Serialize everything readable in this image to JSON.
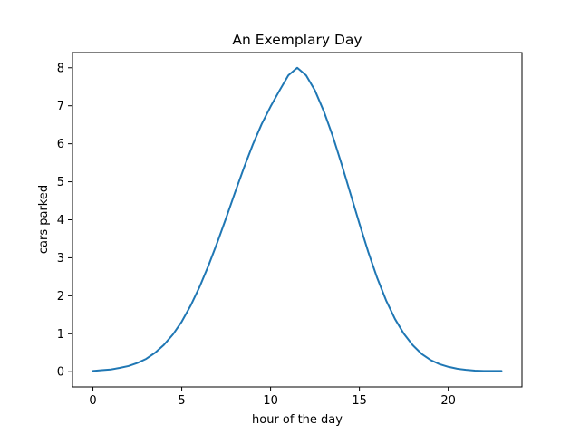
{
  "chart_data": {
    "type": "line",
    "title": "An Exemplary Day",
    "xlabel": "hour of the day",
    "ylabel": "cars parked",
    "xlim": [
      -1.15,
      24.15
    ],
    "ylim": [
      -0.4,
      8.4
    ],
    "xticks": [
      0,
      5,
      10,
      15,
      20
    ],
    "yticks": [
      0,
      1,
      2,
      3,
      4,
      5,
      6,
      7,
      8
    ],
    "grid": false,
    "color": "#1f77b4",
    "series": [
      {
        "x": [
          0,
          0.5,
          1,
          1.5,
          2,
          2.5,
          3,
          3.5,
          4,
          4.5,
          5,
          5.5,
          6,
          6.5,
          7,
          7.5,
          8,
          8.5,
          9,
          9.5,
          10,
          10.5,
          11,
          11.5,
          12,
          12.5,
          13,
          13.5,
          14,
          14.5,
          15,
          15.5,
          16,
          16.5,
          17,
          17.5,
          18,
          18.5,
          19,
          19.5,
          20,
          20.5,
          21,
          21.5,
          22,
          22.5,
          23
        ],
        "values": [
          0.02,
          0.04,
          0.06,
          0.1,
          0.15,
          0.23,
          0.34,
          0.5,
          0.71,
          0.98,
          1.32,
          1.74,
          2.23,
          2.79,
          3.4,
          4.05,
          4.72,
          5.37,
          5.98,
          6.52,
          6.98,
          7.4,
          7.8,
          8.0,
          7.8,
          7.4,
          6.85,
          6.2,
          5.46,
          4.68,
          3.9,
          3.15,
          2.47,
          1.88,
          1.39,
          1.0,
          0.7,
          0.47,
          0.31,
          0.2,
          0.13,
          0.08,
          0.05,
          0.03,
          0.02,
          0.02,
          0.02
        ]
      }
    ]
  }
}
